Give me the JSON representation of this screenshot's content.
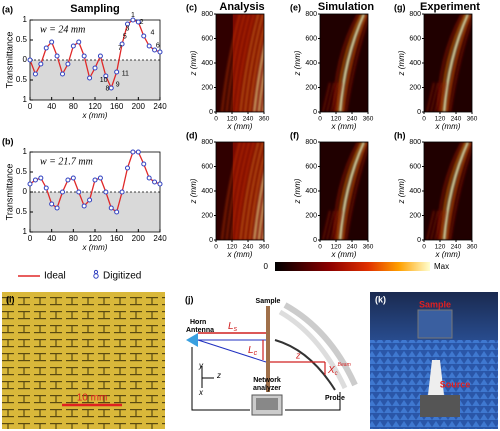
{
  "chart_data": [
    {
      "type": "line",
      "label": "(a)",
      "title": "Sampling",
      "annotation": "w = 24 mm",
      "xlabel": "x (mm)",
      "ylabel": "Transmittance",
      "x": [
        0,
        10,
        20,
        30,
        40,
        50,
        60,
        70,
        80,
        90,
        100,
        110,
        120,
        130,
        140,
        150,
        160,
        170,
        180,
        190,
        200,
        210,
        220,
        230,
        240
      ],
      "series": [
        {
          "name": "Ideal",
          "color": "#e02828",
          "values": [
            0,
            -0.35,
            -0.1,
            0.3,
            0.45,
            0.1,
            -0.35,
            -0.1,
            0.35,
            0.45,
            0.1,
            -0.45,
            -0.2,
            0.1,
            -0.4,
            -0.7,
            -0.3,
            0.4,
            0.9,
            1,
            0.95,
            0.6,
            0.35,
            0.25,
            0.2
          ]
        },
        {
          "name": "Digitized",
          "color": "#3040c0",
          "values": [
            0,
            -0.35,
            -0.1,
            0.3,
            0.45,
            0.1,
            -0.35,
            -0.1,
            0.35,
            0.45,
            0.1,
            -0.45,
            -0.2,
            0.1,
            -0.4,
            -0.7,
            -0.3,
            0.4,
            0.9,
            1,
            0.95,
            0.6,
            0.35,
            0.25,
            0.2
          ]
        }
      ],
      "point_labels": [
        "1",
        "2",
        "3",
        "4",
        "5",
        "6",
        "7",
        "8",
        "9",
        "10",
        "11"
      ],
      "xlim": [
        0,
        240
      ],
      "ylim": [
        -1,
        1
      ],
      "xticks": [
        0,
        40,
        80,
        120,
        160,
        200,
        240
      ],
      "yticks": [
        1,
        0.5,
        0,
        {
          "value": -0.5,
          "label": "0.5"
        },
        {
          "value": -1,
          "label": "1"
        }
      ]
    },
    {
      "type": "line",
      "label": "(b)",
      "annotation": "w = 21.7 mm",
      "xlabel": "x (mm)",
      "ylabel": "Transmittance",
      "x": [
        0,
        10,
        20,
        30,
        40,
        50,
        60,
        70,
        80,
        90,
        100,
        110,
        120,
        130,
        140,
        150,
        160,
        170,
        180,
        190,
        200,
        210,
        220,
        230,
        240
      ],
      "series": [
        {
          "color": "#e02828",
          "values": [
            0.2,
            0.3,
            0.35,
            0.1,
            -0.3,
            -0.4,
            0,
            0.3,
            0.35,
            0,
            -0.35,
            -0.2,
            0.3,
            0.35,
            0,
            -0.4,
            -0.5,
            0,
            0.6,
            1,
            1,
            0.7,
            0.35,
            0.25,
            0.2
          ]
        },
        {
          "color": "#3040c0",
          "values": [
            0.2,
            0.3,
            0.35,
            0.1,
            -0.3,
            -0.4,
            0,
            0.3,
            0.35,
            0,
            -0.35,
            -0.2,
            0.3,
            0.35,
            0,
            -0.4,
            -0.5,
            0,
            0.6,
            1,
            1,
            0.7,
            0.35,
            0.25,
            0.2
          ]
        }
      ],
      "xlim": [
        0,
        240
      ],
      "ylim": [
        -1,
        1
      ],
      "xticks": [
        0,
        40,
        80,
        120,
        160,
        200,
        240
      ],
      "yticks": [
        1,
        0.5,
        0,
        {
          "value": -0.5,
          "label": "0.5"
        },
        {
          "value": -1,
          "label": "1"
        }
      ]
    }
  ],
  "heatmaps": [
    {
      "label": "(c)",
      "title": "Analysis",
      "xlabel": "x (mm)",
      "ylabel": "z (mm)",
      "style": "analysis",
      "xlim": [
        0,
        360
      ],
      "ylim": [
        0,
        800
      ],
      "xticks": [
        0,
        120,
        240,
        360
      ],
      "yticks": [
        0,
        200,
        400,
        600,
        800
      ]
    },
    {
      "label": "(d)",
      "xlabel": "x (mm)",
      "ylabel": "z (mm)",
      "style": "analysis",
      "xlim": [
        0,
        360
      ],
      "ylim": [
        0,
        800
      ],
      "xticks": [
        0,
        120,
        240,
        360
      ],
      "yticks": [
        0,
        200,
        400,
        600,
        800
      ]
    },
    {
      "label": "(e)",
      "title": "Simulation",
      "xlabel": "x (mm)",
      "ylabel": "z (mm)",
      "style": "beam",
      "xlim": [
        0,
        360
      ],
      "ylim": [
        0,
        800
      ],
      "xticks": [
        0,
        120,
        240,
        360
      ],
      "yticks": [
        0,
        200,
        400,
        600,
        800
      ]
    },
    {
      "label": "(f)",
      "xlabel": "x (mm)",
      "ylabel": "z (mm)",
      "style": "beam",
      "xlim": [
        0,
        360
      ],
      "ylim": [
        0,
        800
      ],
      "xticks": [
        0,
        120,
        240,
        360
      ],
      "yticks": [
        0,
        200,
        400,
        600,
        800
      ]
    },
    {
      "label": "(g)",
      "title": "Experiment",
      "xlabel": "x (mm)",
      "ylabel": "z (mm)",
      "style": "beam",
      "xlim": [
        0,
        360
      ],
      "ylim": [
        0,
        800
      ],
      "xticks": [
        0,
        120,
        240,
        360
      ],
      "yticks": [
        0,
        200,
        400,
        600,
        800
      ]
    },
    {
      "label": "(h)",
      "xlabel": "x (mm)",
      "ylabel": "z (mm)",
      "style": "beam",
      "xlim": [
        0,
        360
      ],
      "ylim": [
        0,
        800
      ],
      "xticks": [
        0,
        120,
        240,
        360
      ],
      "yticks": [
        0,
        200,
        400,
        600,
        800
      ]
    }
  ],
  "colorbar": {
    "min_label": "0",
    "max_label": "Max"
  },
  "photo_i": {
    "label": "(i)",
    "scale": "10 mm"
  },
  "diagram_j": {
    "label": "(j)",
    "sample": "Sample",
    "horn": [
      "Horn",
      "Antenna"
    ],
    "ls": [
      "L",
      "s"
    ],
    "lc": [
      "L",
      "c"
    ],
    "z": "z",
    "xc": [
      "X",
      "c",
      "Beam"
    ],
    "axes": [
      "y",
      "z",
      "x"
    ],
    "analyzer": [
      "Network",
      "analyzer"
    ],
    "probe": "Probe"
  },
  "photo_k": {
    "label": "(k)",
    "sample": "Sample",
    "source": "Source"
  }
}
